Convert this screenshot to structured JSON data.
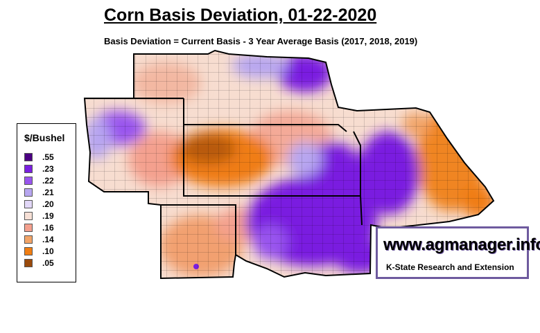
{
  "title": "Corn Basis Deviation, 01-22-2020",
  "subtitle": "Basis Deviation = Current Basis - 3 Year Average Basis (2017, 2018, 2019)",
  "legend": {
    "title": "$/Bushel",
    "items": [
      {
        "label": ".55",
        "color": "#4b0082"
      },
      {
        "label": ".23",
        "color": "#7a1fe0"
      },
      {
        "label": ".22",
        "color": "#9955ee"
      },
      {
        "label": ".21",
        "color": "#b7a6f0"
      },
      {
        "label": ".20",
        "color": "#e2d8f8"
      },
      {
        "label": ".19",
        "color": "#f7e0d6"
      },
      {
        "label": ".16",
        "color": "#f4a08e"
      },
      {
        "label": ".14",
        "color": "#f2a468"
      },
      {
        "label": ".10",
        "color": "#f07d12"
      },
      {
        "label": ".05",
        "color": "#9a4a0c"
      }
    ]
  },
  "logo": {
    "url_text": "www.agmanager.info",
    "org_text": "K-State Research and Extension",
    "border_color": "#6e5a9e"
  }
}
